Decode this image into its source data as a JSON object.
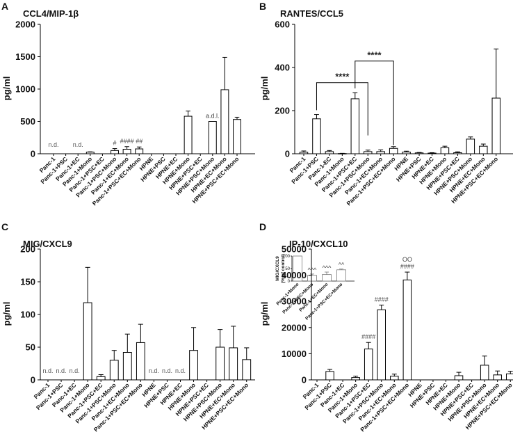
{
  "chart_data": [
    {
      "panel": "A",
      "type": "bar",
      "title": "CCL4/MIP-1β",
      "ylabel": "pg/ml",
      "ylim": [
        0,
        2000
      ],
      "yticks": [
        0,
        500,
        1000,
        1500,
        2000
      ],
      "categories": [
        "Panc-1",
        "Panc-1+PSC",
        "Panc-1+EC",
        "Panc-1+Mono",
        "Panc-1+PSC+EC",
        "Panc-1+PSC+Mono",
        "Panc-1+EC+Mono",
        "Panc-1+PSC+EC+Mono",
        "HPNE",
        "HPNE+PSC",
        "HPNE+EC",
        "HPNE+Mono",
        "HPNE+PSC+EC",
        "HPNE+PSC+Mono",
        "HPNE+EC+Mono",
        "HPNE+PSC+EC+Mono"
      ],
      "values": [
        0,
        0,
        0,
        25,
        0,
        50,
        70,
        75,
        0,
        0,
        0,
        580,
        0,
        500,
        990,
        530
      ],
      "errors": [
        0,
        0,
        0,
        5,
        0,
        30,
        40,
        30,
        0,
        0,
        0,
        80,
        0,
        0,
        500,
        35
      ],
      "annotations": [
        {
          "index": 0,
          "text": "n.d."
        },
        {
          "index": 2,
          "text": "n.d."
        },
        {
          "index": 5,
          "text": "#"
        },
        {
          "index": 6,
          "text": "####"
        },
        {
          "index": 7,
          "text": "##"
        },
        {
          "index": 13,
          "text": "a.d.l."
        }
      ]
    },
    {
      "panel": "B",
      "type": "bar",
      "title": "RANTES/CCL5",
      "ylabel": "pg/ml",
      "ylim": [
        0,
        600
      ],
      "yticks": [
        0,
        200,
        400,
        600
      ],
      "categories": [
        "Panc-1",
        "Panc-1+PSC",
        "Panc-1-EC",
        "Panc-1+Mono",
        "Panc-1+PSC+EC",
        "Panc-1+PSC+Mono",
        "Panc-1+EC+Mono",
        "Panc-1+PSC+EC+Mono",
        "HPNE",
        "HPNE+PSC",
        "HPNE+EC",
        "HPNE+Mono",
        "HPNE+PSC+EC",
        "HPNE+PSC+Mono",
        "HPNE+EC+Mono",
        "HPNE+PSC+EC+Mono"
      ],
      "values": [
        7,
        162,
        10,
        1,
        255,
        10,
        10,
        25,
        8,
        4,
        3,
        28,
        5,
        68,
        35,
        258
      ],
      "errors": [
        6,
        20,
        5,
        1,
        28,
        7,
        8,
        8,
        4,
        2,
        2,
        7,
        4,
        10,
        10,
        228
      ],
      "annotations": [
        {
          "from": 1,
          "to": 5,
          "text": "****"
        },
        {
          "from": 4,
          "to": 7,
          "text": "****"
        }
      ]
    },
    {
      "panel": "C",
      "type": "bar",
      "title": "MIG/CXCL9",
      "ylabel": "pg/ml",
      "ylim": [
        0,
        200
      ],
      "yticks": [
        0,
        50,
        100,
        150,
        200
      ],
      "categories": [
        "Panc-1",
        "Panc-1+PSC",
        "Panc-1+EC",
        "Panc-1+Mono",
        "Panc-1+PSC+EC",
        "Panc-1+PSC+Mono",
        "Panc-1+EC+Mono",
        "Panc-1+PSC+EC+Mono",
        "HPNE",
        "HPNE+PSC",
        "HPNE+EC",
        "HPNE+Mono",
        "HPNE+PSC+EC",
        "HPNE+PSC+Mono",
        "HPNE+EC+Mono",
        "HPNE+PSC+EC+Mono"
      ],
      "values": [
        0,
        0,
        0,
        118,
        5,
        30,
        42,
        57,
        0,
        0,
        0,
        45,
        0,
        50,
        49,
        31
      ],
      "errors": [
        0,
        0,
        0,
        54,
        3,
        15,
        28,
        28,
        0,
        0,
        0,
        35,
        0,
        27,
        33,
        18
      ],
      "annotations": [
        {
          "index": 0,
          "text": "n.d."
        },
        {
          "index": 1,
          "text": "n.d."
        },
        {
          "index": 2,
          "text": "n.d."
        },
        {
          "index": 8,
          "text": "n.d."
        },
        {
          "index": 9,
          "text": "n.d."
        },
        {
          "index": 10,
          "text": "n.d."
        }
      ],
      "inset": {
        "type": "bar",
        "ylabel": "MIG/CXCL9 (% of control)",
        "ylim": [
          0,
          100
        ],
        "yticks": [
          0,
          50,
          100
        ],
        "categories": [
          "Panc-1+Mono",
          "Panc-1+PSC+Mono",
          "Panc-1+EC+Mono",
          "Panc-1+PSC+EC+Mono"
        ],
        "values": [
          100,
          23,
          26,
          45
        ],
        "errors": [
          0,
          5,
          10,
          3
        ],
        "annotations": [
          {
            "index": 1,
            "text": "^^^"
          },
          {
            "index": 2,
            "text": "^^^"
          },
          {
            "index": 3,
            "text": "^^"
          }
        ]
      }
    },
    {
      "panel": "D",
      "type": "bar",
      "title": "IP-10/CXCL10",
      "ylabel": "pg/ml",
      "ylim": [
        0,
        50000
      ],
      "yticks": [
        0,
        10000,
        20000,
        30000,
        40000,
        50000
      ],
      "categories": [
        "Panc-1",
        "Panc-1+PSC",
        "Panc-1+EC",
        "Panc-1+Mono",
        "Panc-1+PSC+EC",
        "Panc-1+PSC+Mono",
        "Panc-1+EC+Mono",
        "Panc-1+PSC+EC+Mono",
        "HPNE",
        "HPNE+PSC",
        "HPNE+EC",
        "HPNE+Mono",
        "HPNE+PSC+EC",
        "HPNE+PSC+Mono",
        "HPNE+EC+Mono",
        "HPNE+PSC+EC+Mono"
      ],
      "values": [
        0,
        3200,
        0,
        900,
        11800,
        26800,
        1400,
        38200,
        0,
        0,
        0,
        1600,
        0,
        5600,
        1900,
        2300
      ],
      "errors": [
        0,
        800,
        0,
        500,
        2500,
        1800,
        800,
        3000,
        0,
        0,
        0,
        1300,
        0,
        3500,
        1500,
        1000
      ],
      "annotations": [
        {
          "index": 4,
          "text": "####"
        },
        {
          "index": 5,
          "text": "####"
        },
        {
          "index": 7,
          "text": "####"
        },
        {
          "index": 7,
          "text": "OO"
        }
      ]
    }
  ]
}
